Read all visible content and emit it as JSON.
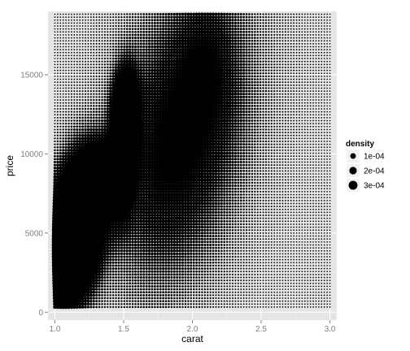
{
  "chart_data": {
    "type": "scatter",
    "title": "",
    "xlabel": "carat",
    "ylabel": "price",
    "xlim": [
      0.95,
      3.05
    ],
    "ylim": [
      -500,
      19000
    ],
    "x_ticks": [
      1.0,
      1.5,
      2.0,
      2.5,
      3.0
    ],
    "x_tick_labels": [
      "1.0",
      "1.5",
      "2.0",
      "2.5",
      "3.0"
    ],
    "y_ticks": [
      0,
      5000,
      10000,
      15000
    ],
    "y_tick_labels": [
      "0",
      "5000",
      "10000",
      "15000"
    ],
    "grid": true,
    "panel_background": "#e5e5e5",
    "point_color": "#000000",
    "grid_x_range": [
      1.0,
      3.0
    ],
    "grid_y_range": [
      326,
      18823
    ],
    "legend": {
      "title": "density",
      "position": "right",
      "entries": [
        {
          "label": "1e-04",
          "value": 0.0001
        },
        {
          "label": "2e-04",
          "value": 0.0002
        },
        {
          "label": "3e-04",
          "value": 0.0003
        }
      ]
    },
    "density_components": [
      {
        "cx": 1.15,
        "cy": 5200,
        "sx": 0.11,
        "sy": 2300,
        "rho": 0.35,
        "w": 0.00033
      },
      {
        "cx": 1.5,
        "cy": 10500,
        "sx": 0.055,
        "sy": 2300,
        "rho": 0.2,
        "w": 0.00019
      },
      {
        "cx": 1.52,
        "cy": 13500,
        "sx": 0.045,
        "sy": 900,
        "rho": 0.0,
        "w": 0.00012
      },
      {
        "cx": 1.32,
        "cy": 9200,
        "sx": 0.08,
        "sy": 900,
        "rho": 0.3,
        "w": 0.0001
      },
      {
        "cx": 1.9,
        "cy": 11000,
        "sx": 0.25,
        "sy": 4500,
        "rho": 0.3,
        "w": 4e-05
      },
      {
        "cx": 2.1,
        "cy": 15500,
        "sx": 0.12,
        "sy": 2500,
        "rho": 0.0,
        "w": 2e-05
      }
    ]
  }
}
